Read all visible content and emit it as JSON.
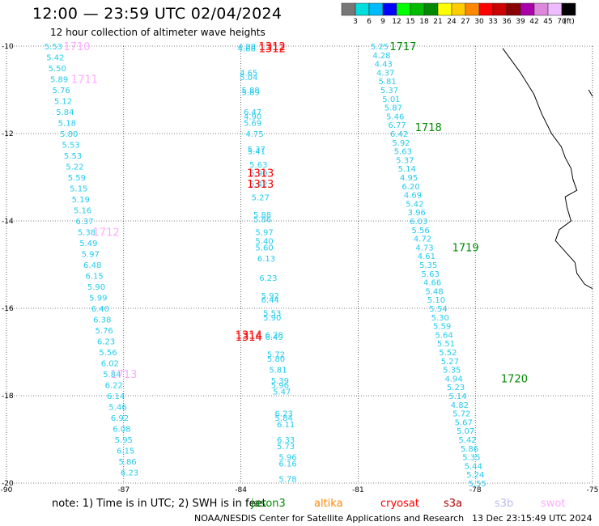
{
  "header": {
    "title": "12:00 — 23:59 UTC 02/04/2024",
    "subtitle": "12 hour collection of altimeter wave heights"
  },
  "colorbar": {
    "unit": "(ft)",
    "labels": [
      "3",
      "6",
      "9",
      "12",
      "15",
      "18",
      "21",
      "24",
      "27",
      "30",
      "33",
      "36",
      "39",
      "42",
      "45",
      "70"
    ],
    "colors": [
      "#777777",
      "#00dddd",
      "#00bbff",
      "#0000ff",
      "#00ff00",
      "#00bb00",
      "#008800",
      "#ffff00",
      "#ffcc00",
      "#ff8800",
      "#ff0000",
      "#cc0000",
      "#880000",
      "#aa00aa",
      "#dd88dd",
      "#eebbff",
      "#000000"
    ]
  },
  "map": {
    "lon_range": [
      -90,
      -75
    ],
    "lat_range": [
      -20,
      -10
    ],
    "lat_ticks": [
      "-10",
      "-12",
      "-14",
      "-16",
      "-18",
      "-20"
    ],
    "lon_ticks": [
      "-90",
      "-87",
      "-84",
      "-81",
      "-78",
      "-75"
    ],
    "coastline": [
      [
        -77.3,
        -10.05
      ],
      [
        -76.85,
        -10.6
      ],
      [
        -76.5,
        -11.1
      ],
      [
        -76.3,
        -11.55
      ],
      [
        -76.05,
        -12.0
      ],
      [
        -75.8,
        -12.3
      ],
      [
        -75.7,
        -12.55
      ],
      [
        -75.55,
        -12.8
      ],
      [
        -75.5,
        -13.05
      ],
      [
        -75.4,
        -13.3
      ],
      [
        -75.7,
        -13.45
      ],
      [
        -75.65,
        -13.7
      ],
      [
        -75.55,
        -14.0
      ],
      [
        -75.85,
        -14.2
      ],
      [
        -75.95,
        -14.45
      ],
      [
        -75.7,
        -14.7
      ],
      [
        -75.45,
        -14.95
      ],
      [
        -75.4,
        -15.2
      ],
      [
        -75.2,
        -15.45
      ],
      [
        -75.0,
        -15.55
      ]
    ],
    "island": [
      [
        -75.1,
        -11.0
      ],
      [
        -75.0,
        -11.15
      ]
    ],
    "colors": {
      "swh_text": "#22ccee",
      "pass_jason": "#008800",
      "pass_altika": "#ff8800",
      "pass_cryosat": "#ff0000",
      "pass_s3a": "#aa0000",
      "pass_s3b": "#bbbbee",
      "pass_swot": "#ffaaff"
    },
    "tracks": [
      {
        "points": [
          {
            "lon": -88.8,
            "lat": -10.0,
            "v": "5.53"
          },
          {
            "lon": -88.75,
            "lat": -10.25,
            "v": "5.42"
          },
          {
            "lon": -88.7,
            "lat": -10.5,
            "v": "5.50"
          },
          {
            "lon": -88.65,
            "lat": -10.75,
            "v": "5.89"
          },
          {
            "lon": -88.6,
            "lat": -11.0,
            "v": "5.76"
          },
          {
            "lon": -88.55,
            "lat": -11.25,
            "v": "5.12"
          },
          {
            "lon": -88.5,
            "lat": -11.5,
            "v": "5.84"
          },
          {
            "lon": -88.45,
            "lat": -11.75,
            "v": "5.18"
          },
          {
            "lon": -88.4,
            "lat": -12.0,
            "v": "5.80"
          },
          {
            "lon": -88.35,
            "lat": -12.25,
            "v": "5.53"
          },
          {
            "lon": -88.3,
            "lat": -12.5,
            "v": "5.53"
          },
          {
            "lon": -88.25,
            "lat": -12.75,
            "v": "5.22"
          },
          {
            "lon": -88.2,
            "lat": -13.0,
            "v": "5.59"
          },
          {
            "lon": -88.15,
            "lat": -13.25,
            "v": "5.15"
          },
          {
            "lon": -88.1,
            "lat": -13.5,
            "v": "5.19"
          },
          {
            "lon": -88.05,
            "lat": -13.75,
            "v": "5.16"
          },
          {
            "lon": -88.0,
            "lat": -14.0,
            "v": "6.37"
          },
          {
            "lon": -87.95,
            "lat": -14.25,
            "v": "5.38"
          },
          {
            "lon": -87.9,
            "lat": -14.5,
            "v": "5.49"
          },
          {
            "lon": -87.85,
            "lat": -14.75,
            "v": "5.97"
          },
          {
            "lon": -87.8,
            "lat": -15.0,
            "v": "6.48"
          },
          {
            "lon": -87.75,
            "lat": -15.25,
            "v": "6.15"
          },
          {
            "lon": -87.7,
            "lat": -15.5,
            "v": "5.90"
          },
          {
            "lon": -87.65,
            "lat": -15.75,
            "v": "5.99"
          },
          {
            "lon": -87.6,
            "lat": -16.0,
            "v": "6.40"
          },
          {
            "lon": -87.55,
            "lat": -16.25,
            "v": "6.38"
          },
          {
            "lon": -87.5,
            "lat": -16.5,
            "v": "5.76"
          },
          {
            "lon": -87.45,
            "lat": -16.75,
            "v": "6.23"
          },
          {
            "lon": -87.4,
            "lat": -17.0,
            "v": "5.56"
          },
          {
            "lon": -87.35,
            "lat": -17.25,
            "v": "6.02"
          },
          {
            "lon": -87.3,
            "lat": -17.5,
            "v": "5.84"
          },
          {
            "lon": -87.25,
            "lat": -17.75,
            "v": "6.22"
          },
          {
            "lon": -87.2,
            "lat": -18.0,
            "v": "6.14"
          },
          {
            "lon": -87.15,
            "lat": -18.25,
            "v": "5.46"
          },
          {
            "lon": -87.1,
            "lat": -18.5,
            "v": "6.92"
          },
          {
            "lon": -87.05,
            "lat": -18.75,
            "v": "6.08"
          },
          {
            "lon": -87.0,
            "lat": -19.0,
            "v": "5.95"
          },
          {
            "lon": -86.95,
            "lat": -19.25,
            "v": "6.15"
          },
          {
            "lon": -86.9,
            "lat": -19.5,
            "v": "5.86"
          },
          {
            "lon": -86.85,
            "lat": -19.75,
            "v": "6.23"
          }
        ]
      },
      {
        "points": [
          {
            "lon": -83.85,
            "lat": -10.0,
            "v": "4.88"
          },
          {
            "lon": -83.85,
            "lat": -10.05,
            "v": "4.88"
          },
          {
            "lon": -83.8,
            "lat": -10.6,
            "v": "4.65"
          },
          {
            "lon": -83.8,
            "lat": -10.7,
            "v": "5.04"
          },
          {
            "lon": -83.75,
            "lat": -11.0,
            "v": "5.88"
          },
          {
            "lon": -83.75,
            "lat": -11.05,
            "v": "5.89"
          },
          {
            "lon": -83.7,
            "lat": -11.5,
            "v": "6.47"
          },
          {
            "lon": -83.7,
            "lat": -11.6,
            "v": "4.90"
          },
          {
            "lon": -83.7,
            "lat": -11.75,
            "v": "5.69"
          },
          {
            "lon": -83.65,
            "lat": -12.0,
            "v": "4.75"
          },
          {
            "lon": -83.6,
            "lat": -12.35,
            "v": "5.37"
          },
          {
            "lon": -83.6,
            "lat": -12.4,
            "v": "5.41"
          },
          {
            "lon": -83.55,
            "lat": -12.7,
            "v": "5.63"
          },
          {
            "lon": -83.55,
            "lat": -12.9,
            "v": "5.90"
          },
          {
            "lon": -83.55,
            "lat": -13.15,
            "v": "5.42"
          },
          {
            "lon": -83.5,
            "lat": -13.45,
            "v": "5.27"
          },
          {
            "lon": -83.45,
            "lat": -13.85,
            "v": "5.88"
          },
          {
            "lon": -83.45,
            "lat": -13.95,
            "v": "5.86"
          },
          {
            "lon": -83.4,
            "lat": -14.25,
            "v": "5.97"
          },
          {
            "lon": -83.4,
            "lat": -14.45,
            "v": "5.40"
          },
          {
            "lon": -83.4,
            "lat": -14.6,
            "v": "5.60"
          },
          {
            "lon": -83.35,
            "lat": -14.85,
            "v": "6.13"
          },
          {
            "lon": -83.3,
            "lat": -15.3,
            "v": "6.23"
          },
          {
            "lon": -83.25,
            "lat": -15.7,
            "v": "5.92"
          },
          {
            "lon": -83.25,
            "lat": -15.8,
            "v": "6.44"
          },
          {
            "lon": -83.2,
            "lat": -16.1,
            "v": "5.53"
          },
          {
            "lon": -83.2,
            "lat": -16.2,
            "v": "5.90"
          },
          {
            "lon": -83.15,
            "lat": -16.6,
            "v": "6.28"
          },
          {
            "lon": -83.15,
            "lat": -16.65,
            "v": "6.49"
          },
          {
            "lon": -83.1,
            "lat": -17.05,
            "v": "5.72"
          },
          {
            "lon": -83.1,
            "lat": -17.15,
            "v": "5.80"
          },
          {
            "lon": -83.05,
            "lat": -17.4,
            "v": "5.81"
          },
          {
            "lon": -83.0,
            "lat": -17.65,
            "v": "5.39"
          },
          {
            "lon": -83.0,
            "lat": -17.75,
            "v": "5.96"
          },
          {
            "lon": -82.95,
            "lat": -17.9,
            "v": "5.47"
          },
          {
            "lon": -82.9,
            "lat": -18.4,
            "v": "6.23"
          },
          {
            "lon": -82.9,
            "lat": -18.5,
            "v": "5.84"
          },
          {
            "lon": -82.85,
            "lat": -18.65,
            "v": "6.11"
          },
          {
            "lon": -82.85,
            "lat": -19.0,
            "v": "6.33"
          },
          {
            "lon": -82.85,
            "lat": -19.15,
            "v": "5.73"
          },
          {
            "lon": -82.8,
            "lat": -19.4,
            "v": "5.96"
          },
          {
            "lon": -82.8,
            "lat": -19.55,
            "v": "6.16"
          },
          {
            "lon": -82.8,
            "lat": -19.9,
            "v": "5.78"
          }
        ]
      },
      {
        "points": [
          {
            "lon": -80.45,
            "lat": -10.0,
            "v": "5.25"
          },
          {
            "lon": -80.4,
            "lat": -10.2,
            "v": "4.28"
          },
          {
            "lon": -80.35,
            "lat": -10.4,
            "v": "4.43"
          },
          {
            "lon": -80.3,
            "lat": -10.6,
            "v": "4.37"
          },
          {
            "lon": -80.25,
            "lat": -10.8,
            "v": "5.81"
          },
          {
            "lon": -80.2,
            "lat": -11.0,
            "v": "5.37"
          },
          {
            "lon": -80.15,
            "lat": -11.2,
            "v": "5.01"
          },
          {
            "lon": -80.1,
            "lat": -11.4,
            "v": "5.87"
          },
          {
            "lon": -80.05,
            "lat": -11.6,
            "v": "5.46"
          },
          {
            "lon": -80.0,
            "lat": -11.8,
            "v": "6.77"
          },
          {
            "lon": -79.95,
            "lat": -12.0,
            "v": "6.42"
          },
          {
            "lon": -79.9,
            "lat": -12.2,
            "v": "5.92"
          },
          {
            "lon": -79.85,
            "lat": -12.4,
            "v": "5.63"
          },
          {
            "lon": -79.8,
            "lat": -12.6,
            "v": "5.37"
          },
          {
            "lon": -79.75,
            "lat": -12.8,
            "v": "5.14"
          },
          {
            "lon": -79.7,
            "lat": -13.0,
            "v": "4.95"
          },
          {
            "lon": -79.65,
            "lat": -13.2,
            "v": "6.20"
          },
          {
            "lon": -79.6,
            "lat": -13.4,
            "v": "4.69"
          },
          {
            "lon": -79.55,
            "lat": -13.6,
            "v": "5.42"
          },
          {
            "lon": -79.5,
            "lat": -13.8,
            "v": "3.96"
          },
          {
            "lon": -79.45,
            "lat": -14.0,
            "v": "6.03"
          },
          {
            "lon": -79.4,
            "lat": -14.2,
            "v": "5.56"
          },
          {
            "lon": -79.35,
            "lat": -14.4,
            "v": "4.72"
          },
          {
            "lon": -79.3,
            "lat": -14.6,
            "v": "4.73"
          },
          {
            "lon": -79.25,
            "lat": -14.8,
            "v": "4.61"
          },
          {
            "lon": -79.2,
            "lat": -15.0,
            "v": "5.35"
          },
          {
            "lon": -79.15,
            "lat": -15.2,
            "v": "5.63"
          },
          {
            "lon": -79.1,
            "lat": -15.4,
            "v": "4.66"
          },
          {
            "lon": -79.05,
            "lat": -15.6,
            "v": "5.48"
          },
          {
            "lon": -79.0,
            "lat": -15.8,
            "v": "5.10"
          },
          {
            "lon": -78.95,
            "lat": -16.0,
            "v": "5.54"
          },
          {
            "lon": -78.9,
            "lat": -16.2,
            "v": "5.30"
          },
          {
            "lon": -78.85,
            "lat": -16.4,
            "v": "5.59"
          },
          {
            "lon": -78.8,
            "lat": -16.6,
            "v": "5.64"
          },
          {
            "lon": -78.75,
            "lat": -16.8,
            "v": "5.51"
          },
          {
            "lon": -78.7,
            "lat": -17.0,
            "v": "5.52"
          },
          {
            "lon": -78.65,
            "lat": -17.2,
            "v": "5.27"
          },
          {
            "lon": -78.6,
            "lat": -17.4,
            "v": "5.35"
          },
          {
            "lon": -78.55,
            "lat": -17.6,
            "v": "4.94"
          },
          {
            "lon": -78.5,
            "lat": -17.8,
            "v": "5.23"
          },
          {
            "lon": -78.45,
            "lat": -18.0,
            "v": "5.14"
          },
          {
            "lon": -78.4,
            "lat": -18.2,
            "v": "4.82"
          },
          {
            "lon": -78.35,
            "lat": -18.4,
            "v": "5.72"
          },
          {
            "lon": -78.3,
            "lat": -18.6,
            "v": "5.67"
          },
          {
            "lon": -78.25,
            "lat": -18.8,
            "v": "5.07"
          },
          {
            "lon": -78.2,
            "lat": -19.0,
            "v": "5.42"
          },
          {
            "lon": -78.15,
            "lat": -19.2,
            "v": "5.86"
          },
          {
            "lon": -78.1,
            "lat": -19.4,
            "v": "5.35"
          },
          {
            "lon": -78.05,
            "lat": -19.6,
            "v": "5.44"
          },
          {
            "lon": -78.0,
            "lat": -19.8,
            "v": "5.24"
          },
          {
            "lon": -77.95,
            "lat": -20.0,
            "v": "5.55"
          }
        ]
      }
    ],
    "passes": [
      {
        "label": "1710",
        "lon": -88.2,
        "lat": -10.0,
        "mission": "swot"
      },
      {
        "label": "1711",
        "lon": -88.0,
        "lat": -10.75,
        "mission": "swot"
      },
      {
        "label": "1712",
        "lon": -87.45,
        "lat": -14.25,
        "mission": "swot"
      },
      {
        "label": "1713",
        "lon": -87.0,
        "lat": -17.5,
        "mission": "swot"
      },
      {
        "label": "1312",
        "lon": -83.2,
        "lat": -10.0,
        "mission": "cryosat"
      },
      {
        "label": "1312",
        "lon": -83.2,
        "lat": -10.05,
        "mission": "cryosat"
      },
      {
        "label": "1313",
        "lon": -83.5,
        "lat": -12.9,
        "mission": "cryosat"
      },
      {
        "label": "1313",
        "lon": -83.5,
        "lat": -13.15,
        "mission": "cryosat"
      },
      {
        "label": "1314",
        "lon": -83.8,
        "lat": -16.6,
        "mission": "cryosat"
      },
      {
        "label": "1314",
        "lon": -83.8,
        "lat": -16.65,
        "mission": "cryosat"
      },
      {
        "label": "1717",
        "lon": -79.85,
        "lat": -10.0,
        "mission": "jason"
      },
      {
        "label": "1718",
        "lon": -79.2,
        "lat": -11.85,
        "mission": "jason"
      },
      {
        "label": "1719",
        "lon": -78.25,
        "lat": -14.6,
        "mission": "jason"
      },
      {
        "label": "1720",
        "lon": -77.0,
        "lat": -17.6,
        "mission": "jason"
      }
    ],
    "legend": {
      "note": "note:  1) Time is in UTC; 2) SWH is in feet",
      "missions": [
        {
          "key": "jason",
          "label": "jason3"
        },
        {
          "key": "altika",
          "label": "altika"
        },
        {
          "key": "cryosat",
          "label": "cryosat"
        },
        {
          "key": "s3a",
          "label": "s3a"
        },
        {
          "key": "s3b",
          "label": "s3b"
        },
        {
          "key": "swot",
          "label": "swot"
        }
      ]
    }
  },
  "footer": {
    "credit": "NOAA/NESDIS Center for Satellite Applications and Research",
    "timestamp": "13 Dec 23:15:49 UTC 2024"
  }
}
